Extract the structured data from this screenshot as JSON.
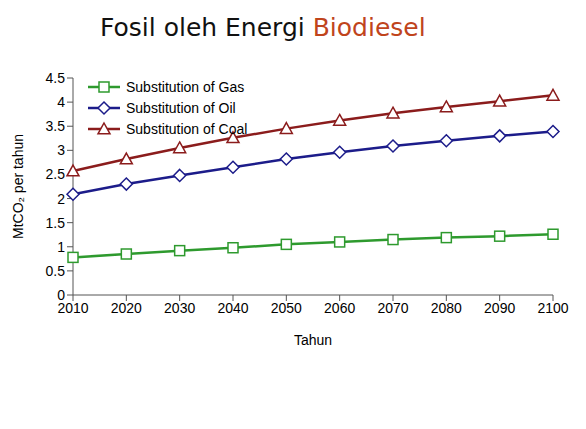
{
  "chart_data": {
    "type": "line",
    "title": "Fosil oleh Energi Biodiesel",
    "x_label": "Tahun",
    "y_label": "MtCO₂ per tahun",
    "categories": [
      "2010",
      "2020",
      "2030",
      "2040",
      "2050",
      "2060",
      "2070",
      "2080",
      "2090",
      "2100"
    ],
    "series": [
      {
        "name": "Substitution of Gas",
        "color": "#2e9a2e",
        "marker": "square",
        "values": [
          0.78,
          0.85,
          0.92,
          0.98,
          1.05,
          1.1,
          1.15,
          1.19,
          1.22,
          1.26
        ]
      },
      {
        "name": "Substitution of Oil",
        "color": "#1c1c8a",
        "marker": "diamond",
        "values": [
          2.09,
          2.3,
          2.48,
          2.65,
          2.82,
          2.96,
          3.09,
          3.2,
          3.3,
          3.39
        ]
      },
      {
        "name": "Substitution of Coal",
        "color": "#8b1c1c",
        "marker": "triangle",
        "values": [
          2.57,
          2.82,
          3.05,
          3.26,
          3.45,
          3.62,
          3.77,
          3.9,
          4.02,
          4.14
        ]
      }
    ],
    "ylim": [
      0,
      4.5
    ],
    "yticks": [
      0,
      0.5,
      1,
      1.5,
      2,
      2.5,
      3,
      3.5,
      4,
      4.5
    ],
    "grid": false,
    "legend": "upper left"
  }
}
